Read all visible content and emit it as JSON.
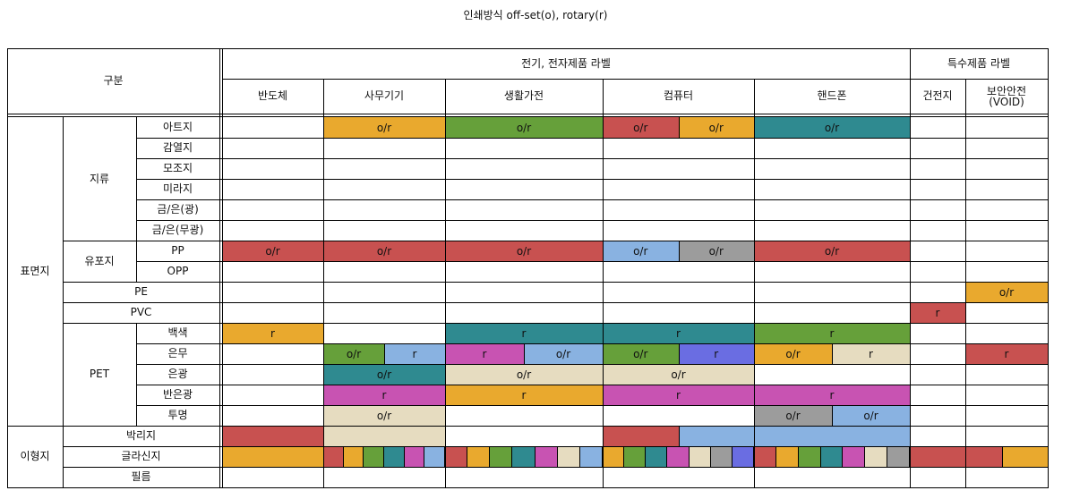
{
  "title": "인쇄방식 off-set(o), rotary(r)",
  "header": {
    "corner": "구분",
    "group_electric": "전기, 전자제품 라벨",
    "group_special": "특수제품 라벨",
    "columns": [
      "반도체",
      "사무기기",
      "생활가전",
      "컴퓨터",
      "핸드폰",
      "건전지",
      "보안안전\n(VOID)"
    ]
  },
  "rows": {
    "group_surface": "표면지",
    "group_release": "이형지",
    "sub_paper": "지류",
    "sub_synthetic": "유포지",
    "pe": "PE",
    "pvc": "PVC",
    "pet": "PET",
    "labels": [
      "아트지",
      "감열지",
      "모조지",
      "미라지",
      "금/은(광)",
      "금/은(무광)",
      "PP",
      "OPP",
      "",
      "",
      "백색",
      "은무",
      "은광",
      "반은광",
      "투명"
    ],
    "release_labels": [
      "박리지",
      "글라신지",
      "필름"
    ]
  },
  "colors": {
    "orange": "#E9A92E",
    "green": "#66A03A",
    "red": "#C85150",
    "teal": "#2F8A90",
    "blue": "#89B2E1",
    "gray": "#9C9C9C",
    "magenta": "#C853B2",
    "beige": "#E6DCC0",
    "violet": "#6A6DE2"
  },
  "fills": [
    {
      "row": 0,
      "c0": 1,
      "c1": 2,
      "color": "orange",
      "text": "o/r"
    },
    {
      "row": 0,
      "c0": 2,
      "c1": 3,
      "color": "green",
      "text": "o/r"
    },
    {
      "row": 0,
      "c0": 3,
      "c1": 3.5,
      "color": "red",
      "text": "o/r"
    },
    {
      "row": 0,
      "c0": 3.5,
      "c1": 4,
      "color": "orange",
      "text": "o/r"
    },
    {
      "row": 0,
      "c0": 4,
      "c1": 5,
      "color": "teal",
      "text": "o/r"
    },
    {
      "row": 6,
      "c0": 0,
      "c1": 1,
      "color": "red",
      "text": "o/r"
    },
    {
      "row": 6,
      "c0": 1,
      "c1": 2,
      "color": "red",
      "text": "o/r"
    },
    {
      "row": 6,
      "c0": 2,
      "c1": 3,
      "color": "red",
      "text": "o/r"
    },
    {
      "row": 6,
      "c0": 3,
      "c1": 3.5,
      "color": "blue",
      "text": "o/r"
    },
    {
      "row": 6,
      "c0": 3.5,
      "c1": 4,
      "color": "gray",
      "text": "o/r"
    },
    {
      "row": 6,
      "c0": 4,
      "c1": 5,
      "color": "red",
      "text": "o/r"
    },
    {
      "row": 8,
      "c0": 6,
      "c1": 7,
      "color": "orange",
      "text": "o/r"
    },
    {
      "row": 9,
      "c0": 5,
      "c1": 6,
      "color": "red",
      "text": "r"
    },
    {
      "row": 10,
      "c0": 0,
      "c1": 1,
      "color": "orange",
      "text": "r"
    },
    {
      "row": 10,
      "c0": 2,
      "c1": 3,
      "color": "teal",
      "text": "r"
    },
    {
      "row": 10,
      "c0": 3,
      "c1": 4,
      "color": "teal",
      "text": "r"
    },
    {
      "row": 10,
      "c0": 4,
      "c1": 5,
      "color": "green",
      "text": "r"
    },
    {
      "row": 11,
      "c0": 1,
      "c1": 1.5,
      "color": "green",
      "text": "o/r"
    },
    {
      "row": 11,
      "c0": 1.5,
      "c1": 2,
      "color": "blue",
      "text": "r"
    },
    {
      "row": 11,
      "c0": 2,
      "c1": 2.5,
      "color": "magenta",
      "text": "r"
    },
    {
      "row": 11,
      "c0": 2.5,
      "c1": 3,
      "color": "blue",
      "text": "o/r"
    },
    {
      "row": 11,
      "c0": 3,
      "c1": 3.5,
      "color": "green",
      "text": "o/r"
    },
    {
      "row": 11,
      "c0": 3.5,
      "c1": 4,
      "color": "violet",
      "text": "r"
    },
    {
      "row": 11,
      "c0": 4,
      "c1": 4.5,
      "color": "orange",
      "text": "o/r"
    },
    {
      "row": 11,
      "c0": 4.5,
      "c1": 5,
      "color": "beige",
      "text": "r"
    },
    {
      "row": 11,
      "c0": 6,
      "c1": 7,
      "color": "red",
      "text": "r"
    },
    {
      "row": 12,
      "c0": 1,
      "c1": 2,
      "color": "teal",
      "text": "o/r"
    },
    {
      "row": 12,
      "c0": 2,
      "c1": 3,
      "color": "beige",
      "text": "o/r"
    },
    {
      "row": 12,
      "c0": 3,
      "c1": 4,
      "color": "beige",
      "text": "o/r"
    },
    {
      "row": 13,
      "c0": 1,
      "c1": 2,
      "color": "magenta",
      "text": "r"
    },
    {
      "row": 13,
      "c0": 2,
      "c1": 3,
      "color": "orange",
      "text": "r"
    },
    {
      "row": 13,
      "c0": 3,
      "c1": 4,
      "color": "magenta",
      "text": "r"
    },
    {
      "row": 13,
      "c0": 4,
      "c1": 5,
      "color": "magenta",
      "text": "r"
    },
    {
      "row": 14,
      "c0": 1,
      "c1": 2,
      "color": "beige",
      "text": "o/r"
    },
    {
      "row": 14,
      "c0": 4,
      "c1": 4.5,
      "color": "gray",
      "text": "o/r"
    },
    {
      "row": 14,
      "c0": 4.5,
      "c1": 5,
      "color": "blue",
      "text": "o/r"
    },
    {
      "row": 15,
      "c0": 0,
      "c1": 1,
      "color": "red",
      "text": ""
    },
    {
      "row": 15,
      "c0": 1,
      "c1": 2,
      "color": "beige",
      "text": ""
    },
    {
      "row": 15,
      "c0": 3,
      "c1": 3.5,
      "color": "red",
      "text": ""
    },
    {
      "row": 15,
      "c0": 3.5,
      "c1": 4,
      "color": "blue",
      "text": ""
    },
    {
      "row": 15,
      "c0": 4,
      "c1": 5,
      "color": "blue",
      "text": ""
    },
    {
      "row": 16,
      "c0": 0,
      "c1": 1,
      "color": "orange",
      "text": ""
    },
    {
      "row": 16,
      "c0": 5,
      "c1": 6,
      "color": "red",
      "text": ""
    },
    {
      "row": 16,
      "c0": 6,
      "c1": 6.45,
      "color": "red",
      "text": ""
    },
    {
      "row": 16,
      "c0": 6.45,
      "c1": 7,
      "color": "orange",
      "text": ""
    }
  ],
  "stripes": [
    {
      "row": 16,
      "c0": 1,
      "c1": 2,
      "colors": [
        "red",
        "orange",
        "green",
        "teal",
        "magenta",
        "blue"
      ]
    },
    {
      "row": 16,
      "c0": 2,
      "c1": 3,
      "colors": [
        "red",
        "orange",
        "green",
        "teal",
        "magenta",
        "beige",
        "blue"
      ]
    },
    {
      "row": 16,
      "c0": 3,
      "c1": 4,
      "colors": [
        "orange",
        "green",
        "teal",
        "magenta",
        "beige",
        "gray",
        "violet"
      ]
    },
    {
      "row": 16,
      "c0": 4,
      "c1": 5,
      "colors": [
        "red",
        "orange",
        "green",
        "teal",
        "magenta",
        "beige",
        "gray"
      ]
    }
  ]
}
